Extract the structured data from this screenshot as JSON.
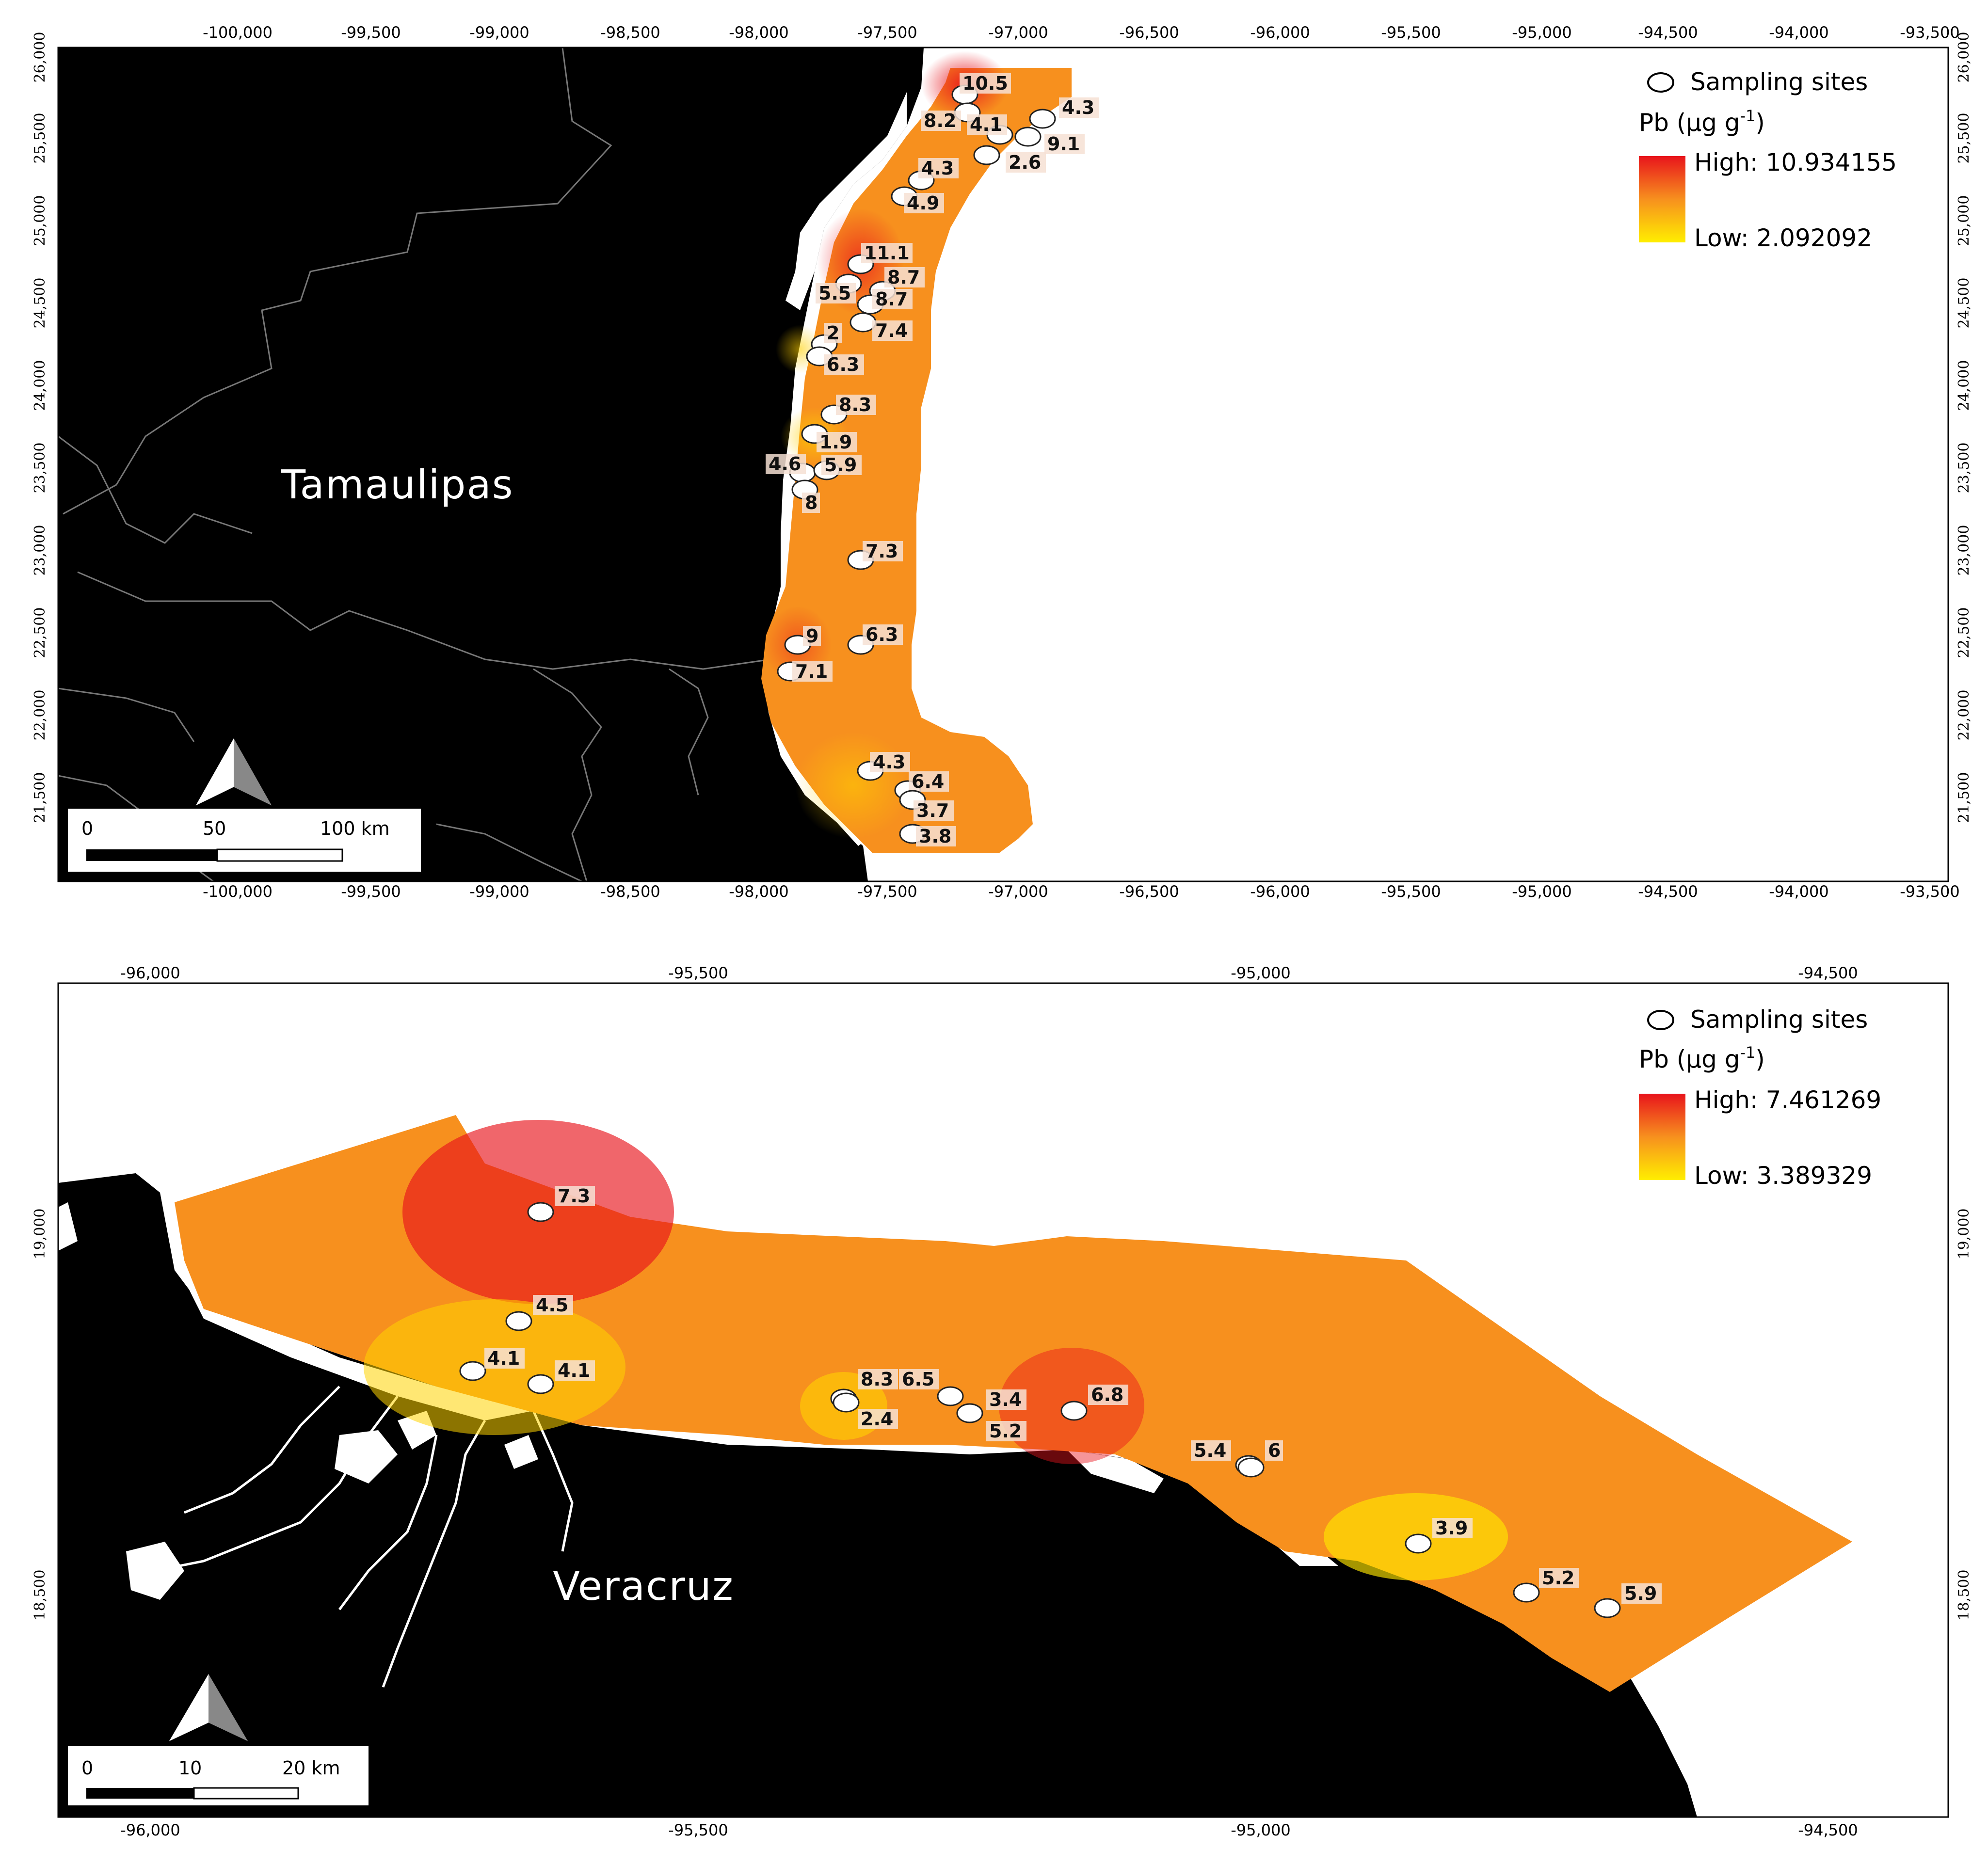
{
  "tamaulipas": {
    "state_label": "Tamaulipas",
    "x_ticks": [
      "-100,000",
      "-99,500",
      "-99,000",
      "-98,500",
      "-98,000",
      "-97,500",
      "-97,000",
      "-96,500",
      "-96,000",
      "-95,500",
      "-95,000",
      "-94,500",
      "-94,000",
      "-93,500"
    ],
    "y_ticks": [
      "26,000",
      "25,500",
      "25,000",
      "24,500",
      "24,000",
      "23,500",
      "23,000",
      "22,500",
      "22,000",
      "21,500"
    ],
    "legend": {
      "sites": "Sampling sites",
      "variable": "Pb (µg g",
      "variable_sup": "-1",
      "variable_close": ")",
      "high": "High: 10.934155",
      "low": "Low: 2.092092"
    },
    "north": "N",
    "scale": {
      "t0": "0",
      "t1": "50",
      "t2": "100 km"
    },
    "sites": [
      "10.5",
      "4.3",
      "8.2",
      "4.1",
      "9.1",
      "2.6",
      "4.3",
      "4.9",
      "11.1",
      "8.7",
      "5.5",
      "8.7",
      "7.4",
      "2",
      "6.3",
      "8.3",
      "1.9",
      "4.6",
      "5.9",
      "8",
      "7.3",
      "9",
      "6.3",
      "7.1",
      "4.3",
      "6.4",
      "3.7",
      "3.8"
    ]
  },
  "veracruz": {
    "state_label": "Veracruz",
    "x_ticks": [
      "-96,000",
      "-95,500",
      "-95,000",
      "-94,500"
    ],
    "y_ticks": [
      "19,000",
      "18,500"
    ],
    "legend": {
      "sites": "Sampling sites",
      "variable": "Pb (µg g",
      "variable_sup": "-1",
      "variable_close": ")",
      "high": "High: 7.461269",
      "low": "Low: 3.389329"
    },
    "north": "N",
    "scale": {
      "t0": "0",
      "t1": "10",
      "t2": "20 km"
    },
    "sites": [
      "7.3",
      "4.5",
      "4.1",
      "4.1",
      "8.3",
      "2.4",
      "6.5",
      "3.4",
      "5.2",
      "6.8",
      "5.4",
      "6",
      "3.9",
      "5.2",
      "5.9"
    ]
  },
  "colors": {
    "high": "#e8141c",
    "mid": "#f7901e",
    "low": "#ffee00",
    "land": "#000000",
    "water": "#ffffff"
  }
}
